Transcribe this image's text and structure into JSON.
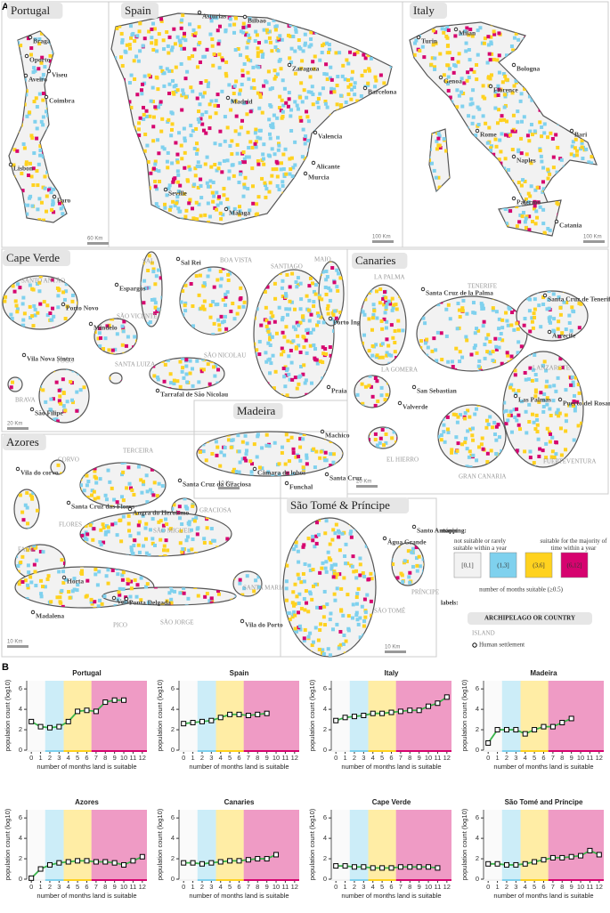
{
  "panel_a": {
    "label": "A",
    "maps": [
      {
        "title": "Portugal",
        "places": [
          "Braga",
          "Oporto",
          "Viseu",
          "Aveiro",
          "Coimbra",
          "Lisbon",
          "Faro"
        ],
        "islands": [],
        "scale": "60 Km"
      },
      {
        "title": "Spain",
        "places": [
          "Asturias",
          "Bilbao",
          "Zaragoza",
          "Madrid",
          "Barcelona",
          "Valencia",
          "Alicante",
          "Murcia",
          "Seville",
          "Málaga"
        ],
        "islands": [],
        "scale": "100 Km"
      },
      {
        "title": "Italy",
        "places": [
          "Turin",
          "Milan",
          "Genoa",
          "Bologna",
          "Florence",
          "Rome",
          "Bari",
          "Naples",
          "Palermo",
          "Catania"
        ],
        "islands": [],
        "scale": "100 Km"
      },
      {
        "title": "Cape Verde",
        "places": [
          "Porto Novo",
          "Espargos",
          "Sal Rei",
          "Porto Inglês",
          "Mindelo",
          "Vila Nova Sintra",
          "São Filipe",
          "Tarrafal de São Nicolau",
          "Praia"
        ],
        "islands": [
          "SANTO ANTÃO",
          "SAL",
          "BOA VISTA",
          "SANTIAGO",
          "MAIO",
          "SÃO VICENTE",
          "SANTA LUIZA",
          "SÃO NICOLAU",
          "FOGO",
          "BRAVA"
        ],
        "scale": "20 Km"
      },
      {
        "title": "Canaries",
        "places": [
          "Santa Cruz de la Palma",
          "Santa Cruz de Tenerife",
          "Arrecife",
          "San Sebastian",
          "Valverde",
          "Las Palmas",
          "Puerto del Rosario"
        ],
        "islands": [
          "LA PALMA",
          "TENERIFE",
          "LA GOMERA",
          "EL HIERRO",
          "LANZAROTE",
          "GRAN CANARIA",
          "FUERTEVENTURA"
        ],
        "scale": "20 Km"
      },
      {
        "title": "Madeira",
        "places": [
          "Machico",
          "Câmara de lobos",
          "Santa Cruz",
          "Funchal"
        ],
        "islands": [],
        "scale": "10 Km"
      },
      {
        "title": "Azores",
        "places": [
          "Vila do corvo",
          "Santa Cruz das Flores",
          "Santa Cruz da Graciosa",
          "Angra do Heroismo",
          "Horta",
          "Ponta Delgada",
          "Velas",
          "Madalena",
          "Vila do Porto"
        ],
        "islands": [
          "CORVO",
          "TERCEIRA",
          "GRACIOSA",
          "FLORES",
          "SÃO MIGUEL",
          "FAIAL",
          "SANTA MARIA",
          "PICO",
          "SÃO JORGE"
        ],
        "scale": "10 Km"
      },
      {
        "title": "São Tomé & Príncipe",
        "places": [
          "Água Grande",
          "Santo António"
        ],
        "islands": [
          "PRÍNCIPE",
          "SÃO TOMÉ"
        ],
        "scale": "10 Km"
      }
    ],
    "legend": {
      "mapping_title": "mapping:",
      "left_note": "not suitable or rarely suitable within a year",
      "right_note": "suitable for the majority of time within a year",
      "bins": [
        {
          "label": "[0,1]",
          "hi": 1,
          "color": "#f2f2f2"
        },
        {
          "label": "(1,3]",
          "hi": 3,
          "color": "#7fd1ee"
        },
        {
          "label": "(3,6]",
          "hi": 6,
          "color": "#ffd21f"
        },
        {
          "label": "(6,12]",
          "hi": 12,
          "color": "#d6046f"
        }
      ],
      "axis_note": "number of months suitable (≥0.5)",
      "labels_title": "labels:",
      "country_label": "ARCHIPELAGO OR COUNTRY",
      "island_label": "ISLAND",
      "settlement_label": "Human settlement"
    }
  },
  "panel_b_label": "B",
  "chart_data": [
    {
      "type": "line",
      "title": "Portugal",
      "x_label": "number of months land is suitable",
      "y_label": "population count (log10)",
      "x": [
        0,
        1,
        2,
        3,
        4,
        5,
        6,
        7,
        8,
        9,
        10,
        11,
        12
      ],
      "values": [
        2.8,
        2.3,
        2.2,
        2.3,
        2.8,
        3.8,
        3.9,
        3.8,
        4.7,
        4.9,
        4.9,
        null,
        null
      ],
      "color": "#39b54a",
      "xlim": [
        -0.5,
        12.5
      ],
      "ylim": [
        0,
        6.8
      ],
      "xticks": [
        0,
        1,
        2,
        3,
        4,
        5,
        6,
        7,
        8,
        9,
        10,
        11,
        12
      ],
      "yticks": [
        0,
        2,
        4,
        6
      ]
    },
    {
      "type": "line",
      "title": "Spain",
      "x_label": "number of months land is suitable",
      "y_label": "population count (log10)",
      "x": [
        0,
        1,
        2,
        3,
        4,
        5,
        6,
        7,
        8,
        9,
        10,
        11,
        12
      ],
      "values": [
        2.6,
        2.7,
        2.8,
        2.9,
        3.2,
        3.5,
        3.5,
        3.4,
        3.5,
        3.6,
        null,
        null,
        null
      ],
      "color": "#39b54a",
      "xlim": [
        -0.5,
        12.5
      ],
      "ylim": [
        0,
        6.8
      ],
      "xticks": [
        0,
        1,
        2,
        3,
        4,
        5,
        6,
        7,
        8,
        9,
        10,
        11,
        12
      ],
      "yticks": [
        0,
        2,
        4,
        6
      ]
    },
    {
      "type": "line",
      "title": "Italy",
      "x_label": "number of months land is suitable",
      "y_label": "population count (log10)",
      "x": [
        0,
        1,
        2,
        3,
        4,
        5,
        6,
        7,
        8,
        9,
        10,
        11,
        12
      ],
      "values": [
        2.9,
        3.2,
        3.3,
        3.4,
        3.6,
        3.6,
        3.7,
        3.8,
        3.9,
        3.9,
        4.3,
        4.6,
        5.2
      ],
      "color": "#39b54a",
      "xlim": [
        -0.5,
        12.5
      ],
      "ylim": [
        0,
        6.8
      ],
      "xticks": [
        0,
        1,
        2,
        3,
        4,
        5,
        6,
        7,
        8,
        9,
        10,
        11,
        12
      ],
      "yticks": [
        0,
        2,
        4,
        6
      ]
    },
    {
      "type": "line",
      "title": "Madeira",
      "x_label": "number of months land is suitable",
      "y_label": "population count (log10)",
      "x": [
        0,
        1,
        2,
        3,
        4,
        5,
        6,
        7,
        8,
        9,
        10,
        11,
        12
      ],
      "values": [
        0.7,
        2.0,
        2.0,
        2.0,
        1.6,
        2.0,
        2.3,
        2.3,
        2.7,
        3.1,
        null,
        null,
        null
      ],
      "color": "#39b54a",
      "xlim": [
        -0.5,
        12.5
      ],
      "ylim": [
        0,
        6.8
      ],
      "xticks": [
        0,
        1,
        2,
        3,
        4,
        5,
        6,
        7,
        8,
        9,
        10,
        11,
        12
      ],
      "yticks": [
        0,
        2,
        4,
        6
      ]
    },
    {
      "type": "line",
      "title": "Azores",
      "x_label": "number of months land is suitable",
      "y_label": "population count (log10)",
      "x": [
        0,
        1,
        2,
        3,
        4,
        5,
        6,
        7,
        8,
        9,
        10,
        11,
        12
      ],
      "values": [
        0.1,
        1.0,
        1.4,
        1.6,
        1.7,
        1.8,
        1.8,
        1.7,
        1.7,
        1.6,
        1.4,
        1.8,
        2.2
      ],
      "color": "#39b54a",
      "xlim": [
        -0.5,
        12.5
      ],
      "ylim": [
        0,
        6.8
      ],
      "xticks": [
        0,
        1,
        2,
        3,
        4,
        5,
        6,
        7,
        8,
        9,
        10,
        11,
        12
      ],
      "yticks": [
        0,
        2,
        4,
        6
      ]
    },
    {
      "type": "line",
      "title": "Canaries",
      "x_label": "number of months land is suitable",
      "y_label": "population count (log10)",
      "x": [
        0,
        1,
        2,
        3,
        4,
        5,
        6,
        7,
        8,
        9,
        10,
        11,
        12
      ],
      "values": [
        1.6,
        1.6,
        1.5,
        1.6,
        1.7,
        1.8,
        1.8,
        1.9,
        2.0,
        2.0,
        2.4,
        null,
        null
      ],
      "color": "#39b54a",
      "xlim": [
        -0.5,
        12.5
      ],
      "ylim": [
        0,
        6.8
      ],
      "xticks": [
        0,
        1,
        2,
        3,
        4,
        5,
        6,
        7,
        8,
        9,
        10,
        11,
        12
      ],
      "yticks": [
        0,
        2,
        4,
        6
      ]
    },
    {
      "type": "line",
      "title": "Cape Verde",
      "x_label": "number of months land is suitable",
      "y_label": "population count (log10)",
      "x": [
        0,
        1,
        2,
        3,
        4,
        5,
        6,
        7,
        8,
        9,
        10,
        11,
        12
      ],
      "values": [
        1.3,
        1.3,
        1.2,
        1.2,
        1.1,
        1.1,
        1.1,
        1.2,
        1.2,
        1.2,
        1.2,
        1.1,
        null
      ],
      "color": "#39b54a",
      "xlim": [
        -0.5,
        12.5
      ],
      "ylim": [
        0,
        6.8
      ],
      "xticks": [
        0,
        1,
        2,
        3,
        4,
        5,
        6,
        7,
        8,
        9,
        10,
        11,
        12
      ],
      "yticks": [
        0,
        2,
        4,
        6
      ]
    },
    {
      "type": "line",
      "title": "São Tomé and Príncipe",
      "x_label": "number of months land is suitable",
      "y_label": "population count (log10)",
      "x": [
        0,
        1,
        2,
        3,
        4,
        5,
        6,
        7,
        8,
        9,
        10,
        11,
        12
      ],
      "values": [
        1.5,
        1.5,
        1.4,
        1.4,
        1.5,
        1.7,
        1.9,
        2.1,
        2.1,
        2.2,
        2.3,
        2.8,
        2.4
      ],
      "color": "#39b54a",
      "xlim": [
        -0.5,
        12.5
      ],
      "ylim": [
        0,
        6.8
      ],
      "xticks": [
        0,
        1,
        2,
        3,
        4,
        5,
        6,
        7,
        8,
        9,
        10,
        11,
        12
      ],
      "yticks": [
        0,
        2,
        4,
        6
      ]
    }
  ]
}
